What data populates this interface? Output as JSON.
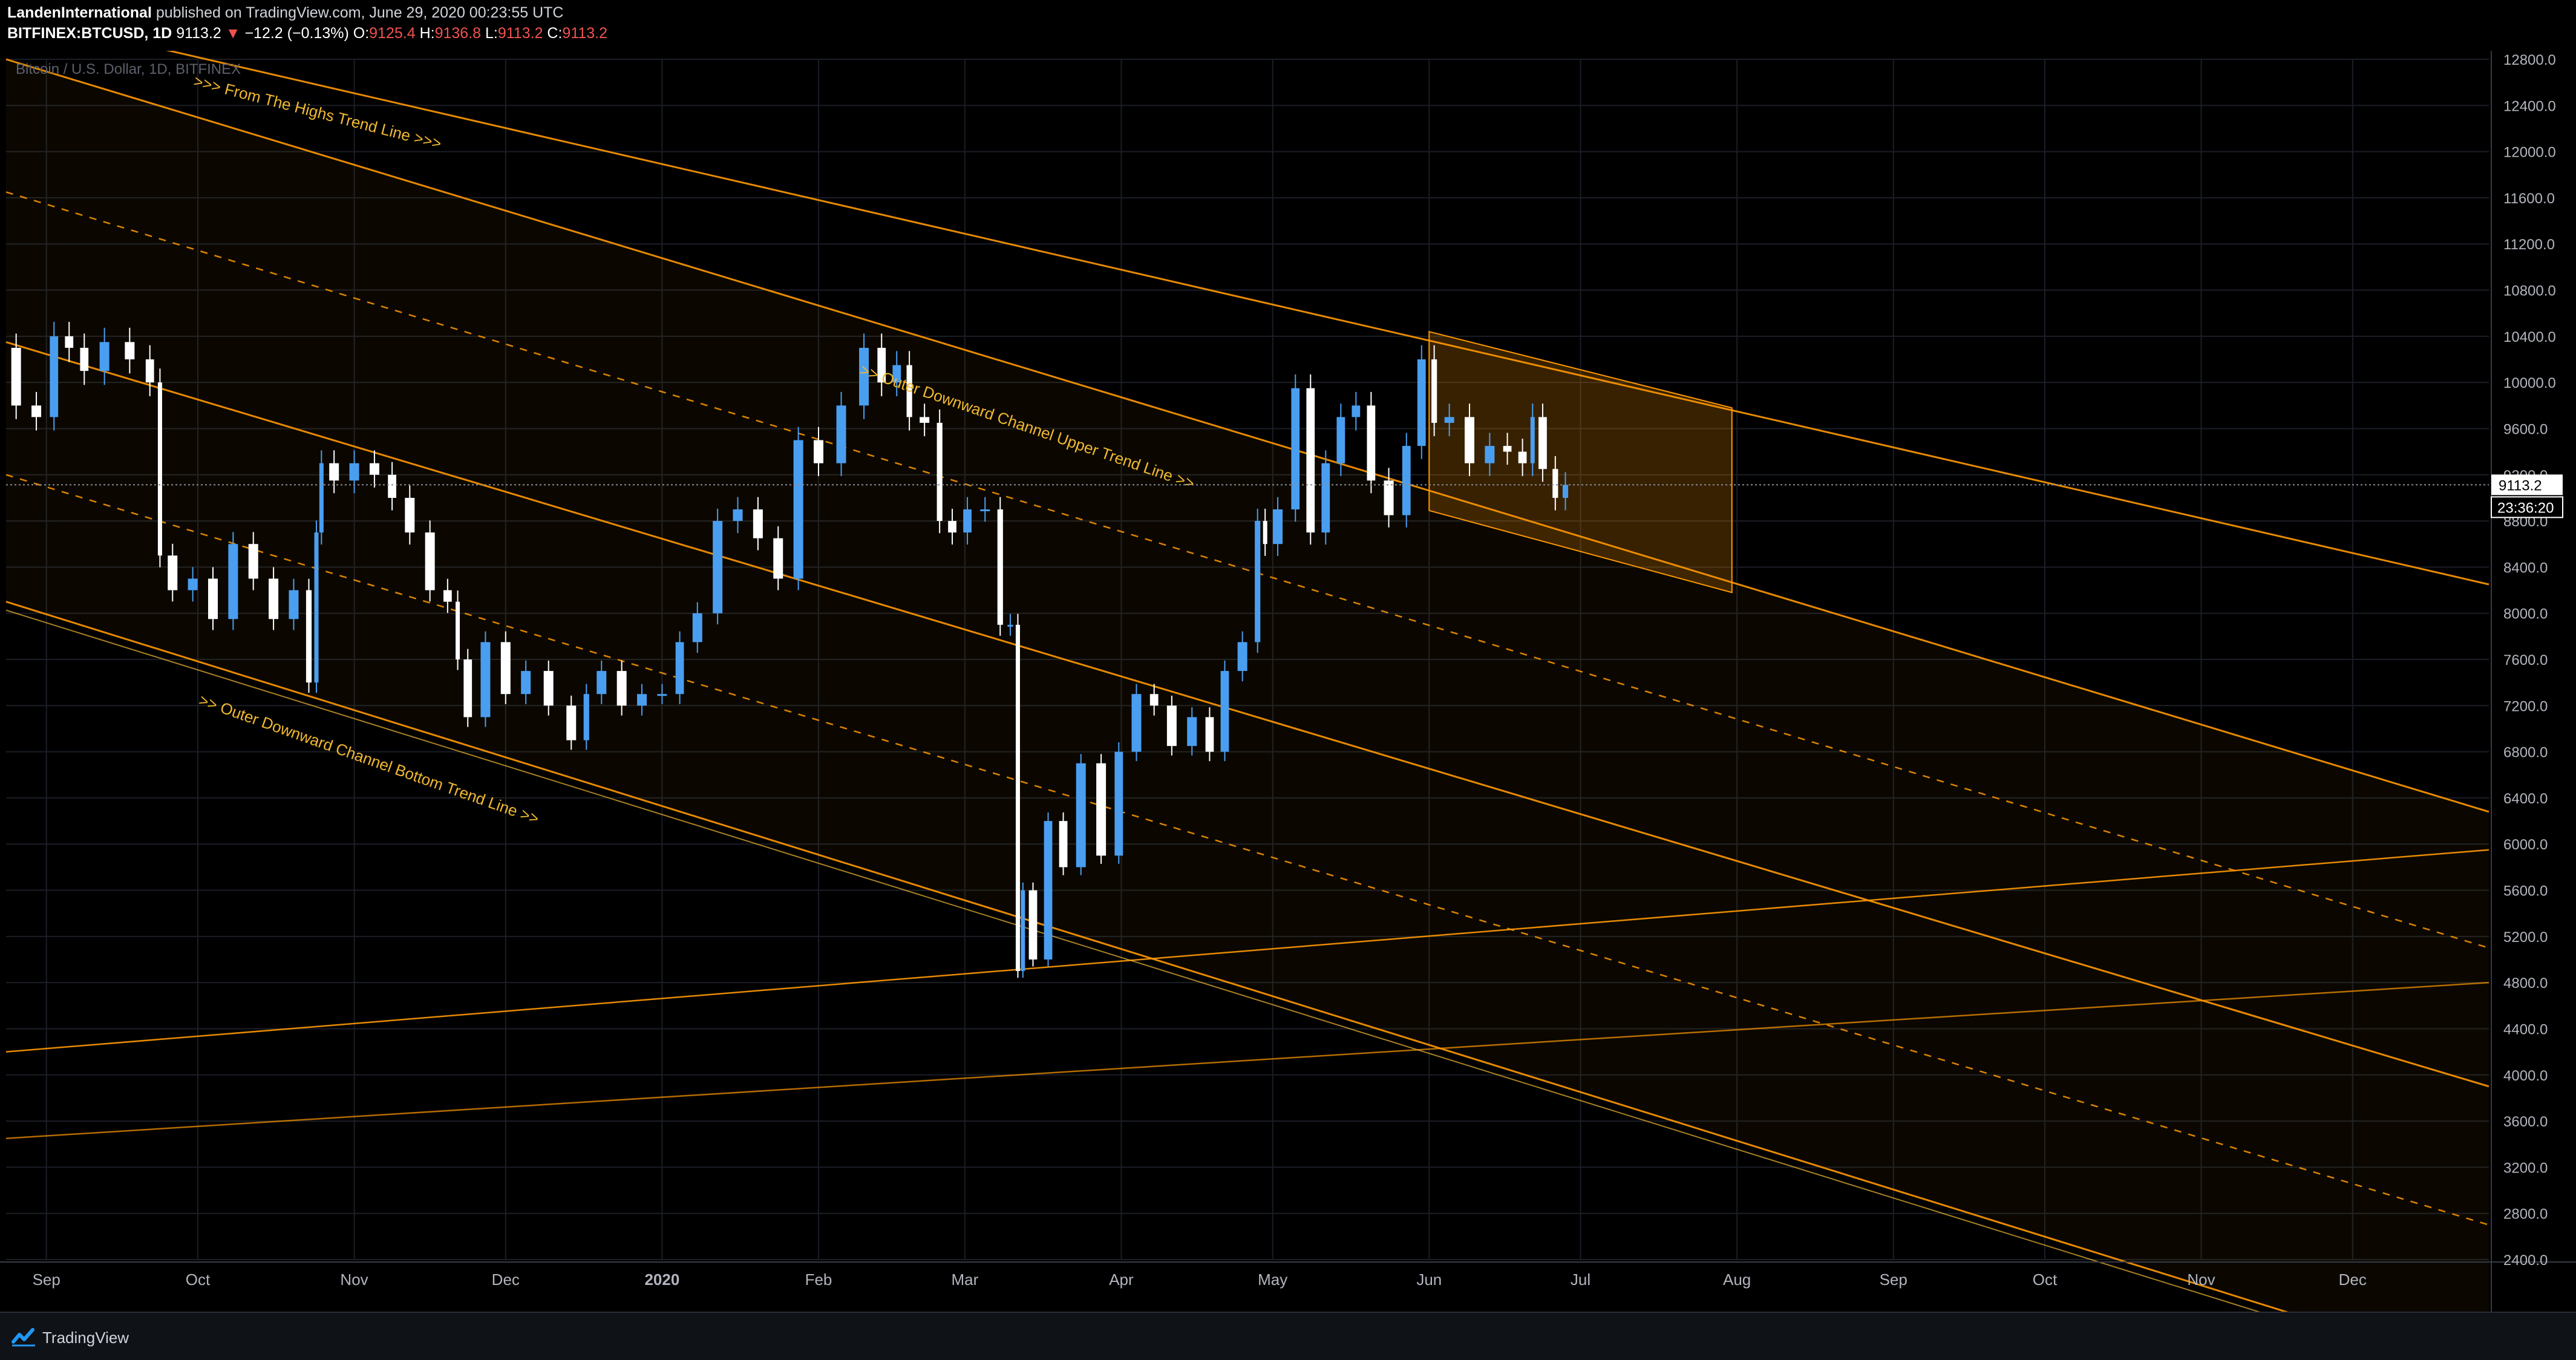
{
  "header": {
    "publisher": "LandenInternational",
    "published_text": " published on TradingView.com, June 29, 2020 00:23:55 UTC",
    "symbol": "BITFINEX:BTCUSD, 1D",
    "last": "9113.2",
    "down_arrow": "▼",
    "change": "−12.2 (−0.13%)",
    "o_label": "O:",
    "o": "9125.4",
    "h_label": "H:",
    "h": "9136.8",
    "l_label": "L:",
    "l": "9113.2",
    "c_label": "C:",
    "c": "9113.2"
  },
  "footer": {
    "brand": "TradingView"
  },
  "colors": {
    "background": "#000000",
    "grid": "#1b1e26",
    "up": "#4a9ef0",
    "down": "#ffffff",
    "trendline": "#ff9800",
    "annotation": "#f0b830",
    "price_tag": "#ffffff"
  },
  "chart_data": {
    "type": "candlestick",
    "title": "Bitcoin / U.S. Dollar, 1D, BITFINEX",
    "x_ticks": [
      {
        "label": "Sep",
        "date": "2019-09-01"
      },
      {
        "label": "Oct",
        "date": "2019-10-01"
      },
      {
        "label": "Nov",
        "date": "2019-11-01"
      },
      {
        "label": "Dec",
        "date": "2019-12-01"
      },
      {
        "label": "2020",
        "date": "2020-01-01"
      },
      {
        "label": "Feb",
        "date": "2020-02-01"
      },
      {
        "label": "Mar",
        "date": "2020-03-01"
      },
      {
        "label": "Apr",
        "date": "2020-04-01"
      },
      {
        "label": "May",
        "date": "2020-05-01"
      },
      {
        "label": "Jun",
        "date": "2020-06-01"
      },
      {
        "label": "Jul",
        "date": "2020-07-01"
      },
      {
        "label": "Aug",
        "date": "2020-08-01"
      },
      {
        "label": "Sep",
        "date": "2020-09-01"
      },
      {
        "label": "Oct",
        "date": "2020-10-01"
      },
      {
        "label": "Nov",
        "date": "2020-11-01"
      },
      {
        "label": "Dec",
        "date": "2020-12-01"
      }
    ],
    "x_range": [
      "2019-08-24",
      "2020-12-28"
    ],
    "y_range": [
      2400,
      12800
    ],
    "y_ticks": [
      2400,
      2800,
      3200,
      3600,
      4000,
      4400,
      4800,
      5200,
      5600,
      6000,
      6400,
      6800,
      7200,
      7600,
      8000,
      8400,
      8800,
      9200,
      9600,
      10000,
      10400,
      10800,
      11200,
      11600,
      12000,
      12400,
      12800
    ],
    "y_tick_labels": [
      "2400.0",
      "2800.0",
      "3200.0",
      "3600.0",
      "4000.0",
      "4400.0",
      "4800.0",
      "5200.0",
      "5600.0",
      "6000.0",
      "6400.0",
      "6800.0",
      "7200.0",
      "7600.0",
      "8000.0",
      "8400.0",
      "8800.0",
      "9200.0",
      "9600.0",
      "10000.0",
      "10400.0",
      "10800.0",
      "11200.0",
      "11600.0",
      "12000.0",
      "12400.0",
      "12800.0"
    ],
    "last_price": 9113.2,
    "last_price_label": "9113.2",
    "countdown_label": "23:36:20",
    "series_close": [
      [
        "2019-08-24",
        10300
      ],
      [
        "2019-08-28",
        9800
      ],
      [
        "2019-09-01",
        9700
      ],
      [
        "2019-09-04",
        10400
      ],
      [
        "2019-09-07",
        10300
      ],
      [
        "2019-09-10",
        10100
      ],
      [
        "2019-09-15",
        10350
      ],
      [
        "2019-09-20",
        10200
      ],
      [
        "2019-09-23",
        10000
      ],
      [
        "2019-09-24",
        8500
      ],
      [
        "2019-09-28",
        8200
      ],
      [
        "2019-10-02",
        8300
      ],
      [
        "2019-10-06",
        7950
      ],
      [
        "2019-10-10",
        8600
      ],
      [
        "2019-10-14",
        8300
      ],
      [
        "2019-10-18",
        7950
      ],
      [
        "2019-10-22",
        8200
      ],
      [
        "2019-10-24",
        7400
      ],
      [
        "2019-10-25",
        8700
      ],
      [
        "2019-10-26",
        9300
      ],
      [
        "2019-10-30",
        9150
      ],
      [
        "2019-11-03",
        9300
      ],
      [
        "2019-11-07",
        9200
      ],
      [
        "2019-11-10",
        9000
      ],
      [
        "2019-11-14",
        8700
      ],
      [
        "2019-11-18",
        8200
      ],
      [
        "2019-11-21",
        8100
      ],
      [
        "2019-11-22",
        7600
      ],
      [
        "2019-11-25",
        7100
      ],
      [
        "2019-11-29",
        7750
      ],
      [
        "2019-12-03",
        7300
      ],
      [
        "2019-12-07",
        7500
      ],
      [
        "2019-12-12",
        7200
      ],
      [
        "2019-12-16",
        6900
      ],
      [
        "2019-12-18",
        7300
      ],
      [
        "2019-12-22",
        7500
      ],
      [
        "2019-12-26",
        7200
      ],
      [
        "2019-12-30",
        7300
      ],
      [
        "2020-01-03",
        7300
      ],
      [
        "2020-01-06",
        7750
      ],
      [
        "2020-01-10",
        8000
      ],
      [
        "2020-01-14",
        8800
      ],
      [
        "2020-01-18",
        8900
      ],
      [
        "2020-01-22",
        8650
      ],
      [
        "2020-01-26",
        8300
      ],
      [
        "2020-01-30",
        9500
      ],
      [
        "2020-02-03",
        9300
      ],
      [
        "2020-02-08",
        9800
      ],
      [
        "2020-02-12",
        10300
      ],
      [
        "2020-02-15",
        10000
      ],
      [
        "2020-02-18",
        10150
      ],
      [
        "2020-02-20",
        9700
      ],
      [
        "2020-02-24",
        9650
      ],
      [
        "2020-02-26",
        8800
      ],
      [
        "2020-02-29",
        8700
      ],
      [
        "2020-03-03",
        8900
      ],
      [
        "2020-03-07",
        8900
      ],
      [
        "2020-03-09",
        7900
      ],
      [
        "2020-03-11",
        7900
      ],
      [
        "2020-03-12",
        4900
      ],
      [
        "2020-03-13",
        5600
      ],
      [
        "2020-03-16",
        5000
      ],
      [
        "2020-03-19",
        6200
      ],
      [
        "2020-03-22",
        5800
      ],
      [
        "2020-03-26",
        6700
      ],
      [
        "2020-03-30",
        5900
      ],
      [
        "2020-04-02",
        6800
      ],
      [
        "2020-04-06",
        7300
      ],
      [
        "2020-04-09",
        7200
      ],
      [
        "2020-04-13",
        6850
      ],
      [
        "2020-04-17",
        7100
      ],
      [
        "2020-04-20",
        6800
      ],
      [
        "2020-04-23",
        7500
      ],
      [
        "2020-04-27",
        7750
      ],
      [
        "2020-04-29",
        8800
      ],
      [
        "2020-04-30",
        8600
      ],
      [
        "2020-05-04",
        8900
      ],
      [
        "2020-05-07",
        9950
      ],
      [
        "2020-05-10",
        8700
      ],
      [
        "2020-05-13",
        9300
      ],
      [
        "2020-05-16",
        9700
      ],
      [
        "2020-05-19",
        9800
      ],
      [
        "2020-05-22",
        9150
      ],
      [
        "2020-05-26",
        8850
      ],
      [
        "2020-05-29",
        9450
      ],
      [
        "2020-06-01",
        10200
      ],
      [
        "2020-06-03",
        9650
      ],
      [
        "2020-06-07",
        9700
      ],
      [
        "2020-06-11",
        9300
      ],
      [
        "2020-06-15",
        9450
      ],
      [
        "2020-06-18",
        9400
      ],
      [
        "2020-06-21",
        9300
      ],
      [
        "2020-06-22",
        9700
      ],
      [
        "2020-06-25",
        9250
      ],
      [
        "2020-06-27",
        9000
      ],
      [
        "2020-06-29",
        9113
      ]
    ],
    "trend_lines": [
      {
        "label": "From The Highs Trend Line",
        "start": [
          "2019-08-24",
          13200
        ],
        "end": [
          "2020-12-28",
          8250
        ]
      },
      {
        "label": "Outer Downward Channel Upper Trend Line",
        "start": [
          "2019-08-24",
          12800
        ],
        "end": [
          "2020-12-28",
          6280
        ]
      },
      {
        "label": "",
        "start": [
          "2019-08-24",
          10350
        ],
        "end": [
          "2020-12-28",
          3900
        ]
      },
      {
        "label": "Outer Downward Channel Bottom Trend Line",
        "start": [
          "2019-08-24",
          8100
        ],
        "end": [
          "2020-12-28",
          1400
        ]
      },
      {
        "label": "",
        "start": [
          "2019-08-24",
          4200
        ],
        "end": [
          "2020-12-28",
          5950
        ]
      },
      {
        "label": "",
        "start": [
          "2019-08-24",
          3450
        ],
        "end": [
          "2020-12-28",
          4800
        ]
      }
    ],
    "dashed_lines": [
      {
        "start": [
          "2019-08-24",
          11650
        ],
        "end": [
          "2020-12-28",
          5100
        ]
      },
      {
        "start": [
          "2019-08-24",
          9200
        ],
        "end": [
          "2020-12-28",
          2700
        ]
      }
    ],
    "annotations": [
      {
        "text": ">>> From The Highs Trend Line >>>",
        "date": "2019-09-30",
        "price": 12570,
        "angle": 14.4
      },
      {
        "text": ">> Outer Downward Channel Upper Trend Line >>",
        "date": "2020-02-09",
        "price": 10070,
        "angle": 19.0
      },
      {
        "text": ">> Outer Downward Channel Bottom Trend Line >>",
        "date": "2019-10-01",
        "price": 7210,
        "angle": 19.5
      }
    ],
    "highlight_zone": [
      [
        "2020-06-01",
        10440
      ],
      [
        "2020-07-31",
        9780
      ],
      [
        "2020-07-31",
        8180
      ],
      [
        "2020-06-01",
        8890
      ]
    ]
  }
}
